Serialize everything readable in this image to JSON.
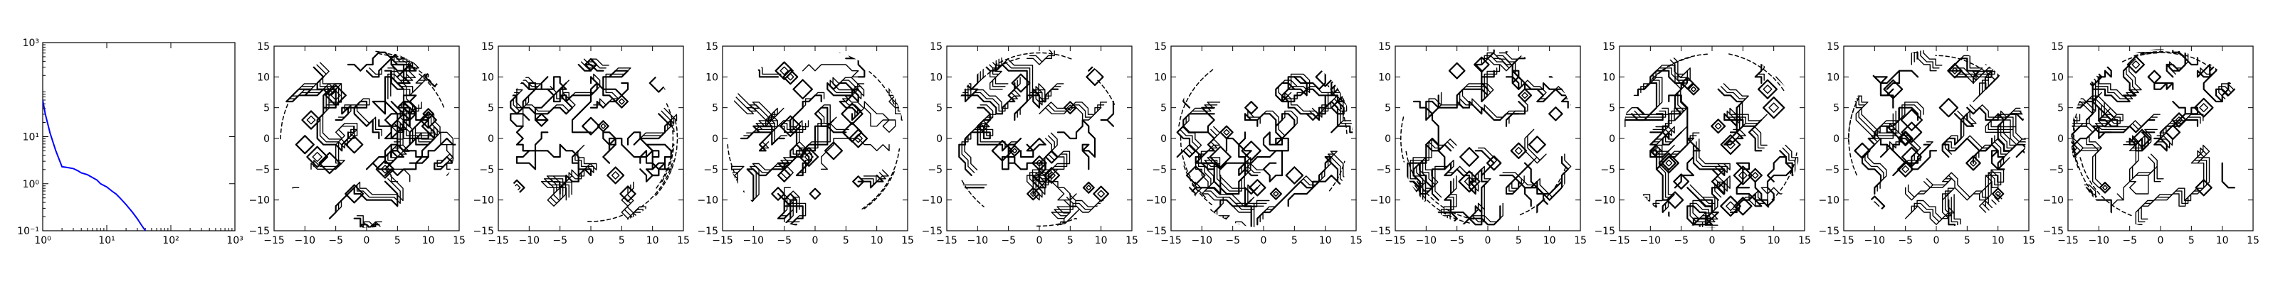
{
  "chart_data": [
    {
      "type": "line",
      "title": "",
      "xlabel": "",
      "ylabel": "",
      "xscale": "log",
      "yscale": "log",
      "xlim": [
        1,
        1000
      ],
      "ylim": [
        0.1,
        1000
      ],
      "xticks": [
        1,
        10,
        100,
        1000
      ],
      "xtick_labels": [
        "10⁰",
        "10¹",
        "10²",
        "10³"
      ],
      "yticks": [
        0.1,
        1,
        10,
        1000
      ],
      "ytick_labels": [
        "10⁻¹",
        "10⁰",
        "10¹",
        "10³"
      ],
      "grid": false,
      "color": "#0000ff",
      "series": [
        {
          "x": [
            1,
            1.1,
            1.3,
            1.6,
            2,
            2.5,
            3,
            3.5,
            4,
            5,
            6,
            7,
            8,
            10,
            12,
            14,
            16,
            20,
            25,
            30,
            35,
            40
          ],
          "y": [
            60,
            30,
            12,
            5,
            2.3,
            2.2,
            2.1,
            1.9,
            1.7,
            1.55,
            1.35,
            1.2,
            1.0,
            0.85,
            0.7,
            0.6,
            0.5,
            0.36,
            0.25,
            0.18,
            0.13,
            0.1
          ]
        }
      ]
    },
    {
      "type": "contour",
      "xlim": [
        -15,
        15
      ],
      "ylim": [
        -15,
        15
      ],
      "xticks": [
        "−15",
        "−10",
        "−5",
        "0",
        "5",
        "10",
        "15"
      ],
      "yticks": [
        "15",
        "10",
        "5",
        "0",
        "−5",
        "−10",
        "−15"
      ]
    },
    {
      "type": "contour",
      "xlim": [
        -15,
        15
      ],
      "ylim": [
        -15,
        15
      ],
      "xticks": [
        "−15",
        "−10",
        "−5",
        "0",
        "5",
        "10",
        "15"
      ],
      "yticks": [
        "15",
        "10",
        "5",
        "0",
        "−5",
        "−10",
        "−15"
      ]
    },
    {
      "type": "contour",
      "xlim": [
        -15,
        15
      ],
      "ylim": [
        -15,
        15
      ],
      "xticks": [
        "−15",
        "−10",
        "−5",
        "0",
        "5",
        "10",
        "15"
      ],
      "yticks": [
        "15",
        "10",
        "5",
        "0",
        "−5",
        "−10",
        "−15"
      ]
    },
    {
      "type": "contour",
      "xlim": [
        -15,
        15
      ],
      "ylim": [
        -15,
        15
      ],
      "xticks": [
        "−15",
        "−10",
        "−5",
        "0",
        "5",
        "10",
        "15"
      ],
      "yticks": [
        "15",
        "10",
        "5",
        "0",
        "−5",
        "−10",
        "−15"
      ]
    },
    {
      "type": "contour",
      "xlim": [
        -15,
        15
      ],
      "ylim": [
        -15,
        15
      ],
      "xticks": [
        "−15",
        "−10",
        "−5",
        "0",
        "5",
        "10",
        "15"
      ],
      "yticks": [
        "15",
        "10",
        "5",
        "0",
        "−5",
        "−10",
        "−15"
      ]
    },
    {
      "type": "contour",
      "xlim": [
        -15,
        15
      ],
      "ylim": [
        -15,
        15
      ],
      "xticks": [
        "−15",
        "−10",
        "−5",
        "0",
        "5",
        "10",
        "15"
      ],
      "yticks": [
        "15",
        "10",
        "5",
        "0",
        "−5",
        "−10",
        "−15"
      ]
    },
    {
      "type": "contour",
      "xlim": [
        -15,
        15
      ],
      "ylim": [
        -15,
        15
      ],
      "xticks": [
        "−15",
        "−10",
        "−5",
        "0",
        "5",
        "10",
        "15"
      ],
      "yticks": [
        "15",
        "10",
        "5",
        "0",
        "−5",
        "−10",
        "−15"
      ]
    },
    {
      "type": "contour",
      "xlim": [
        -15,
        15
      ],
      "ylim": [
        -15,
        15
      ],
      "xticks": [
        "−15",
        "−10",
        "−5",
        "0",
        "5",
        "10",
        "15"
      ],
      "yticks": [
        "15",
        "10",
        "5",
        "0",
        "−5",
        "−10",
        "−15"
      ]
    },
    {
      "type": "contour",
      "xlim": [
        -15,
        15
      ],
      "ylim": [
        -15,
        15
      ],
      "xticks": [
        "−15",
        "−10",
        "−5",
        "0",
        "5",
        "10",
        "15"
      ],
      "yticks": [
        "15",
        "10",
        "5",
        "0",
        "−5",
        "−10",
        "−15"
      ]
    }
  ]
}
